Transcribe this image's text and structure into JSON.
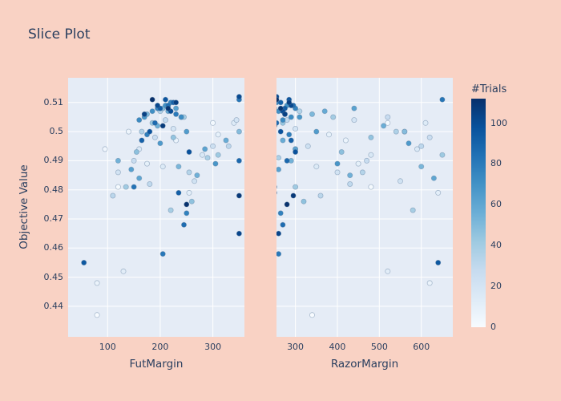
{
  "figure": {
    "background": "#f9d2c4",
    "plot_background": "#e5ecf6",
    "gridline_color": "#ffffff",
    "text_color": "#2a3f5f"
  },
  "chart_data": {
    "type": "scatter",
    "title": "Slice Plot",
    "ylabel": "Objective Value",
    "ylim": [
      0.4295,
      0.5185
    ],
    "yticks": [
      0.44,
      0.45,
      0.46,
      0.47,
      0.48,
      0.49,
      0.5,
      0.51
    ],
    "ytick_labels": [
      "0.44",
      "0.45",
      "0.46",
      "0.47",
      "0.48",
      "0.49",
      "0.5",
      "0.51"
    ],
    "grid": true,
    "legend": "none",
    "subplots": [
      {
        "xlabel": "FutMargin",
        "xlim": [
          25,
          360
        ],
        "xticks": [
          100,
          200,
          300
        ],
        "xtick_labels": [
          "100",
          "200",
          "300"
        ]
      },
      {
        "xlabel": "RazorMargin",
        "xlim": [
          255,
          675
        ],
        "xticks": [
          300,
          400,
          500,
          600
        ],
        "xtick_labels": [
          "300",
          "400",
          "500",
          "600"
        ]
      }
    ],
    "colorbar": {
      "title": "#Trials",
      "min": 0,
      "max": 112,
      "ticks": [
        0,
        20,
        40,
        60,
        80,
        100
      ],
      "tick_labels": [
        "0",
        "20",
        "40",
        "60",
        "80",
        "100"
      ],
      "colormap": "Blues",
      "stops": [
        [
          0,
          "#f7fbff"
        ],
        [
          0.125,
          "#deebf7"
        ],
        [
          0.25,
          "#c6dbef"
        ],
        [
          0.375,
          "#9ecae1"
        ],
        [
          0.5,
          "#6baed6"
        ],
        [
          0.625,
          "#4292c6"
        ],
        [
          0.75,
          "#2171b5"
        ],
        [
          0.875,
          "#08519c"
        ],
        [
          1,
          "#08306b"
        ]
      ]
    },
    "trials_format": [
      "trial_number",
      "FutMargin",
      "RazorMargin",
      "objective_value"
    ],
    "trials": [
      [
        0,
        80,
        340,
        0.437
      ],
      [
        1,
        120,
        480,
        0.481
      ],
      [
        2,
        300,
        520,
        0.503
      ],
      [
        4,
        95,
        300,
        0.494
      ],
      [
        5,
        140,
        560,
        0.5
      ],
      [
        6,
        230,
        420,
        0.497
      ],
      [
        7,
        80,
        620,
        0.448
      ],
      [
        9,
        310,
        380,
        0.499
      ],
      [
        10,
        175,
        450,
        0.489
      ],
      [
        11,
        255,
        640,
        0.479
      ],
      [
        12,
        130,
        520,
        0.452
      ],
      [
        14,
        340,
        610,
        0.503
      ],
      [
        15,
        205,
        350,
        0.488
      ],
      [
        16,
        160,
        590,
        0.494
      ],
      [
        17,
        280,
        480,
        0.492
      ],
      [
        19,
        225,
        300,
        0.501
      ],
      [
        20,
        345,
        440,
        0.504
      ],
      [
        21,
        120,
        400,
        0.486
      ],
      [
        22,
        265,
        550,
        0.483
      ],
      [
        24,
        300,
        330,
        0.495
      ],
      [
        25,
        190,
        620,
        0.498
      ],
      [
        26,
        150,
        470,
        0.49
      ],
      [
        27,
        240,
        520,
        0.505
      ],
      [
        29,
        210,
        280,
        0.504
      ],
      [
        30,
        180,
        430,
        0.482
      ],
      [
        31,
        330,
        600,
        0.495
      ],
      [
        32,
        110,
        360,
        0.478
      ],
      [
        34,
        255,
        460,
        0.486
      ],
      [
        35,
        200,
        310,
        0.507
      ],
      [
        36,
        165,
        540,
        0.5
      ],
      [
        37,
        290,
        260,
        0.491
      ],
      [
        39,
        220,
        580,
        0.473
      ],
      [
        40,
        245,
        390,
        0.505
      ],
      [
        41,
        135,
        300,
        0.481
      ],
      [
        42,
        310,
        650,
        0.492
      ],
      [
        44,
        185,
        270,
        0.503
      ],
      [
        45,
        225,
        480,
        0.498
      ],
      [
        46,
        260,
        320,
        0.476
      ],
      [
        47,
        155,
        410,
        0.493
      ],
      [
        49,
        350,
        560,
        0.5
      ],
      [
        50,
        205,
        250,
        0.508
      ],
      [
        51,
        175,
        340,
        0.506
      ],
      [
        52,
        235,
        600,
        0.488
      ],
      [
        54,
        120,
        290,
        0.49
      ],
      [
        55,
        270,
        430,
        0.485
      ],
      [
        56,
        195,
        510,
        0.502
      ],
      [
        57,
        325,
        270,
        0.497
      ],
      [
        58,
        215,
        370,
        0.507
      ],
      [
        60,
        160,
        630,
        0.484
      ],
      [
        61,
        285,
        300,
        0.494
      ],
      [
        62,
        230,
        440,
        0.508
      ],
      [
        63,
        145,
        260,
        0.487
      ],
      [
        65,
        250,
        350,
        0.5
      ],
      [
        66,
        200,
        570,
        0.496
      ],
      [
        67,
        170,
        310,
        0.505
      ],
      [
        68,
        305,
        400,
        0.489
      ],
      [
        70,
        210,
        280,
        0.509
      ],
      [
        71,
        185,
        260,
        0.507
      ],
      [
        72,
        240,
        290,
        0.505
      ],
      [
        73,
        160,
        270,
        0.504
      ],
      [
        75,
        220,
        255,
        0.51
      ],
      [
        76,
        195,
        300,
        0.508
      ],
      [
        77,
        250,
        265,
        0.472
      ],
      [
        78,
        175,
        285,
        0.499
      ],
      [
        80,
        230,
        275,
        0.506
      ],
      [
        81,
        205,
        260,
        0.458
      ],
      [
        82,
        350,
        650,
        0.511
      ],
      [
        83,
        150,
        250,
        0.481
      ],
      [
        85,
        215,
        295,
        0.509
      ],
      [
        86,
        245,
        270,
        0.468
      ],
      [
        87,
        190,
        255,
        0.503
      ],
      [
        88,
        350,
        280,
        0.49
      ],
      [
        90,
        225,
        265,
        0.51
      ],
      [
        91,
        165,
        290,
        0.497
      ],
      [
        92,
        235,
        250,
        0.479
      ],
      [
        93,
        200,
        275,
        0.508
      ],
      [
        95,
        55,
        640,
        0.455
      ],
      [
        96,
        210,
        285,
        0.511
      ],
      [
        97,
        180,
        265,
        0.5
      ],
      [
        98,
        255,
        300,
        0.493
      ],
      [
        100,
        220,
        270,
        0.507
      ],
      [
        101,
        350,
        255,
        0.512
      ],
      [
        102,
        195,
        290,
        0.509
      ],
      [
        103,
        350,
        260,
        0.465
      ],
      [
        105,
        170,
        275,
        0.506
      ],
      [
        106,
        230,
        285,
        0.51
      ],
      [
        107,
        205,
        250,
        0.502
      ],
      [
        108,
        350,
        295,
        0.478
      ],
      [
        110,
        215,
        265,
        0.508
      ],
      [
        111,
        250,
        280,
        0.475
      ],
      [
        112,
        185,
        255,
        0.511
      ]
    ]
  }
}
